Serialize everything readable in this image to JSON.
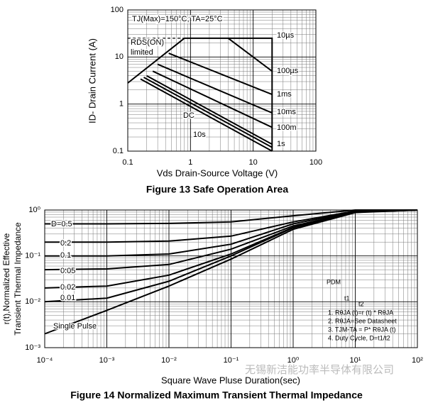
{
  "chart_data": [
    {
      "type": "line",
      "log": true,
      "grid": true,
      "color": "#000000",
      "caption": "Figure 13    Safe Operation Area",
      "xlabel": "Vds Drain-Source Voltage (V)",
      "ylabel": "ID- Drain Current (A)",
      "annotations": [
        "TJ(Max)=150°C, TA=25°C",
        "RDS(ON)",
        "limited"
      ],
      "xlim": [
        0.1,
        100
      ],
      "ylim": [
        0.1,
        100
      ],
      "xticks": [
        0.1,
        1,
        10,
        100
      ],
      "yticks": [
        0.1,
        1,
        10,
        100
      ],
      "series": [
        {
          "x": [
            0.1,
            0.8
          ],
          "values": [
            2.8,
            25
          ]
        },
        {
          "x": [
            0.1,
            0.8
          ],
          "values": [
            25,
            25
          ],
          "dashed": true
        },
        {
          "name": "10µs",
          "x": [
            0.8,
            20,
            20
          ],
          "values": [
            25,
            25,
            0.1
          ]
        },
        {
          "name": "100µs",
          "x": [
            4,
            20
          ],
          "values": [
            25,
            5
          ]
        },
        {
          "name": "1ms",
          "x": [
            0.45,
            20
          ],
          "values": [
            12,
            1.6
          ]
        },
        {
          "name": "10ms",
          "x": [
            0.3,
            20
          ],
          "values": [
            7,
            0.65
          ]
        },
        {
          "name": "100m",
          "x": [
            0.25,
            20
          ],
          "values": [
            5,
            0.32
          ]
        },
        {
          "name": "1s",
          "x": [
            0.2,
            20
          ],
          "values": [
            4,
            0.14
          ]
        },
        {
          "name": "10s",
          "x": [
            0.18,
            20
          ],
          "values": [
            3.7,
            0.12
          ]
        },
        {
          "name": "DC",
          "x": [
            0.16,
            20
          ],
          "values": [
            3.4,
            0.1
          ]
        }
      ]
    },
    {
      "type": "line",
      "log": true,
      "grid": true,
      "color": "#000000",
      "caption": "Figure 14 Normalized Maximum Transient Thermal Impedance",
      "xlabel": "Square Wave Pluse Duration(sec)",
      "ylabel": [
        "r(t),Normalized Effective",
        "Transient Thermal Impedance"
      ],
      "xlim": [
        0.0001,
        100
      ],
      "ylim": [
        0.001,
        1
      ],
      "xticks": [
        {
          "value": 0.0001,
          "label": "10⁻⁴"
        },
        {
          "value": 0.001,
          "label": "10⁻³"
        },
        {
          "value": 0.01,
          "label": "10⁻²"
        },
        {
          "value": 0.1,
          "label": "10⁻¹"
        },
        {
          "value": 1,
          "label": "10⁰"
        },
        {
          "value": 10,
          "label": "10¹"
        },
        {
          "value": 100,
          "label": "10²"
        }
      ],
      "yticks": [
        {
          "value": 0.001,
          "label": "10⁻³"
        },
        {
          "value": 0.01,
          "label": "10⁻²"
        },
        {
          "value": 0.1,
          "label": "10⁻¹"
        },
        {
          "value": 1,
          "label": "10⁰"
        }
      ],
      "x": [
        0.0001,
        0.001,
        0.01,
        0.1,
        1,
        10,
        100
      ],
      "series": [
        {
          "name": "D=0.5",
          "values": [
            0.5,
            0.5,
            0.51,
            0.55,
            0.75,
            1,
            1
          ]
        },
        {
          "name": "0.2",
          "values": [
            0.2,
            0.2,
            0.21,
            0.27,
            0.55,
            0.95,
            1
          ]
        },
        {
          "name": "0.1",
          "values": [
            0.1,
            0.1,
            0.11,
            0.18,
            0.5,
            0.92,
            1
          ]
        },
        {
          "name": "0.05",
          "values": [
            0.05,
            0.052,
            0.065,
            0.14,
            0.45,
            0.9,
            1
          ]
        },
        {
          "name": "0.02",
          "values": [
            0.02,
            0.022,
            0.038,
            0.11,
            0.42,
            0.9,
            1
          ]
        },
        {
          "name": "0.01",
          "values": [
            0.01,
            0.012,
            0.028,
            0.1,
            0.41,
            0.9,
            1
          ]
        },
        {
          "name": "Single Pulse",
          "values": [
            0.002,
            0.0065,
            0.022,
            0.085,
            0.38,
            0.88,
            1
          ]
        }
      ],
      "annotations": [
        "PDM",
        "t1",
        "t2",
        "1. RθJA (t)=r (t) * RθJA",
        "2. RθJA=See Datasheet",
        "3. TJM-TA = P* RθJA (t)",
        "4. Duty Cycle, D=t1/t2"
      ]
    }
  ],
  "watermark": "无锡新洁能功率半导体有限公司"
}
